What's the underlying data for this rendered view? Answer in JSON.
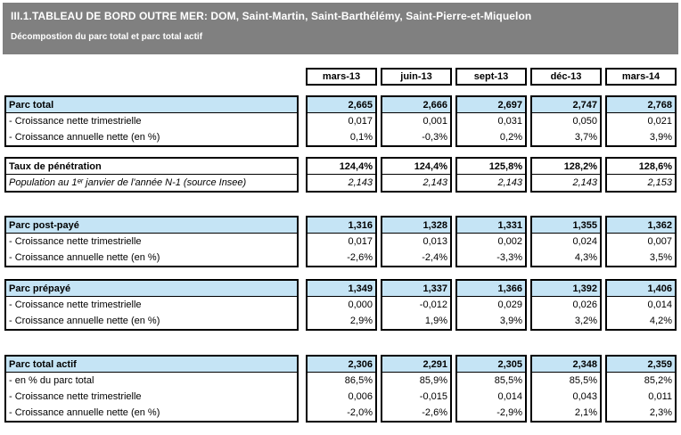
{
  "header": {
    "title": "III.1.TABLEAU DE BORD OUTRE MER: DOM, Saint-Martin, Saint-Barthélémy, Saint-Pierre-et-Miquelon",
    "subtitle": "Décompostion du parc total et parc total actif"
  },
  "columns": [
    "mars-13",
    "juin-13",
    "sept-13",
    "déc-13",
    "mars-14"
  ],
  "colors": {
    "band_bg": "#808080",
    "band_text": "#FFFFFF",
    "highlight_blue": "#C5E4F5",
    "border": "#000000"
  },
  "blocks": [
    {
      "name": "parc-total",
      "rows": [
        {
          "label": "Parc total",
          "style": "header",
          "values": [
            "2,665",
            "2,666",
            "2,697",
            "2,747",
            "2,768"
          ]
        },
        {
          "label": "- Croissance nette trimestrielle",
          "style": "plain",
          "values": [
            "0,017",
            "0,001",
            "0,031",
            "0,050",
            "0,021"
          ]
        },
        {
          "label": "- Croissance annuelle nette (en %)",
          "style": "plain",
          "values": [
            "0,1%",
            "-0,3%",
            "0,2%",
            "3,7%",
            "3,9%"
          ]
        }
      ]
    },
    {
      "name": "taux-de-penetration",
      "rows": [
        {
          "label": "Taux de pénétration",
          "style": "bold",
          "values": [
            "124,4%",
            "124,4%",
            "125,8%",
            "128,2%",
            "128,6%"
          ]
        },
        {
          "label": "Population au 1ᵉʳ janvier de l'année N-1 (source Insee)",
          "style": "italic",
          "values": [
            "2,143",
            "2,143",
            "2,143",
            "2,143",
            "2,153"
          ]
        }
      ]
    },
    {
      "name": "parc-post-paye",
      "rows": [
        {
          "label": "Parc post-payé",
          "style": "header",
          "values": [
            "1,316",
            "1,328",
            "1,331",
            "1,355",
            "1,362"
          ]
        },
        {
          "label": "- Croissance nette trimestrielle",
          "style": "plain",
          "values": [
            "0,017",
            "0,013",
            "0,002",
            "0,024",
            "0,007"
          ]
        },
        {
          "label": "- Croissance annuelle nette (en %)",
          "style": "plain",
          "values": [
            "-2,6%",
            "-2,4%",
            "-3,3%",
            "4,3%",
            "3,5%"
          ]
        }
      ]
    },
    {
      "name": "parc-prepaye",
      "rows": [
        {
          "label": "Parc prépayé",
          "style": "header",
          "values": [
            "1,349",
            "1,337",
            "1,366",
            "1,392",
            "1,406"
          ]
        },
        {
          "label": "- Croissance nette trimestrielle",
          "style": "plain",
          "values": [
            "0,000",
            "-0,012",
            "0,029",
            "0,026",
            "0,014"
          ]
        },
        {
          "label": "- Croissance annuelle nette (en %)",
          "style": "plain",
          "values": [
            "2,9%",
            "1,9%",
            "3,9%",
            "3,2%",
            "4,2%"
          ]
        }
      ]
    },
    {
      "name": "parc-total-actif",
      "rows": [
        {
          "label": "Parc total actif",
          "style": "header",
          "values": [
            "2,306",
            "2,291",
            "2,305",
            "2,348",
            "2,359"
          ]
        },
        {
          "label": "- en % du parc total",
          "style": "plain",
          "values": [
            "86,5%",
            "85,9%",
            "85,5%",
            "85,5%",
            "85,2%"
          ]
        },
        {
          "label": "- Croissance nette trimestrielle",
          "style": "plain",
          "values": [
            "0,006",
            "-0,015",
            "0,014",
            "0,043",
            "0,011"
          ]
        },
        {
          "label": "- Croissance annuelle nette (en %)",
          "style": "plain",
          "values": [
            "-2,0%",
            "-2,6%",
            "-2,9%",
            "2,1%",
            "2,3%"
          ]
        }
      ]
    }
  ]
}
